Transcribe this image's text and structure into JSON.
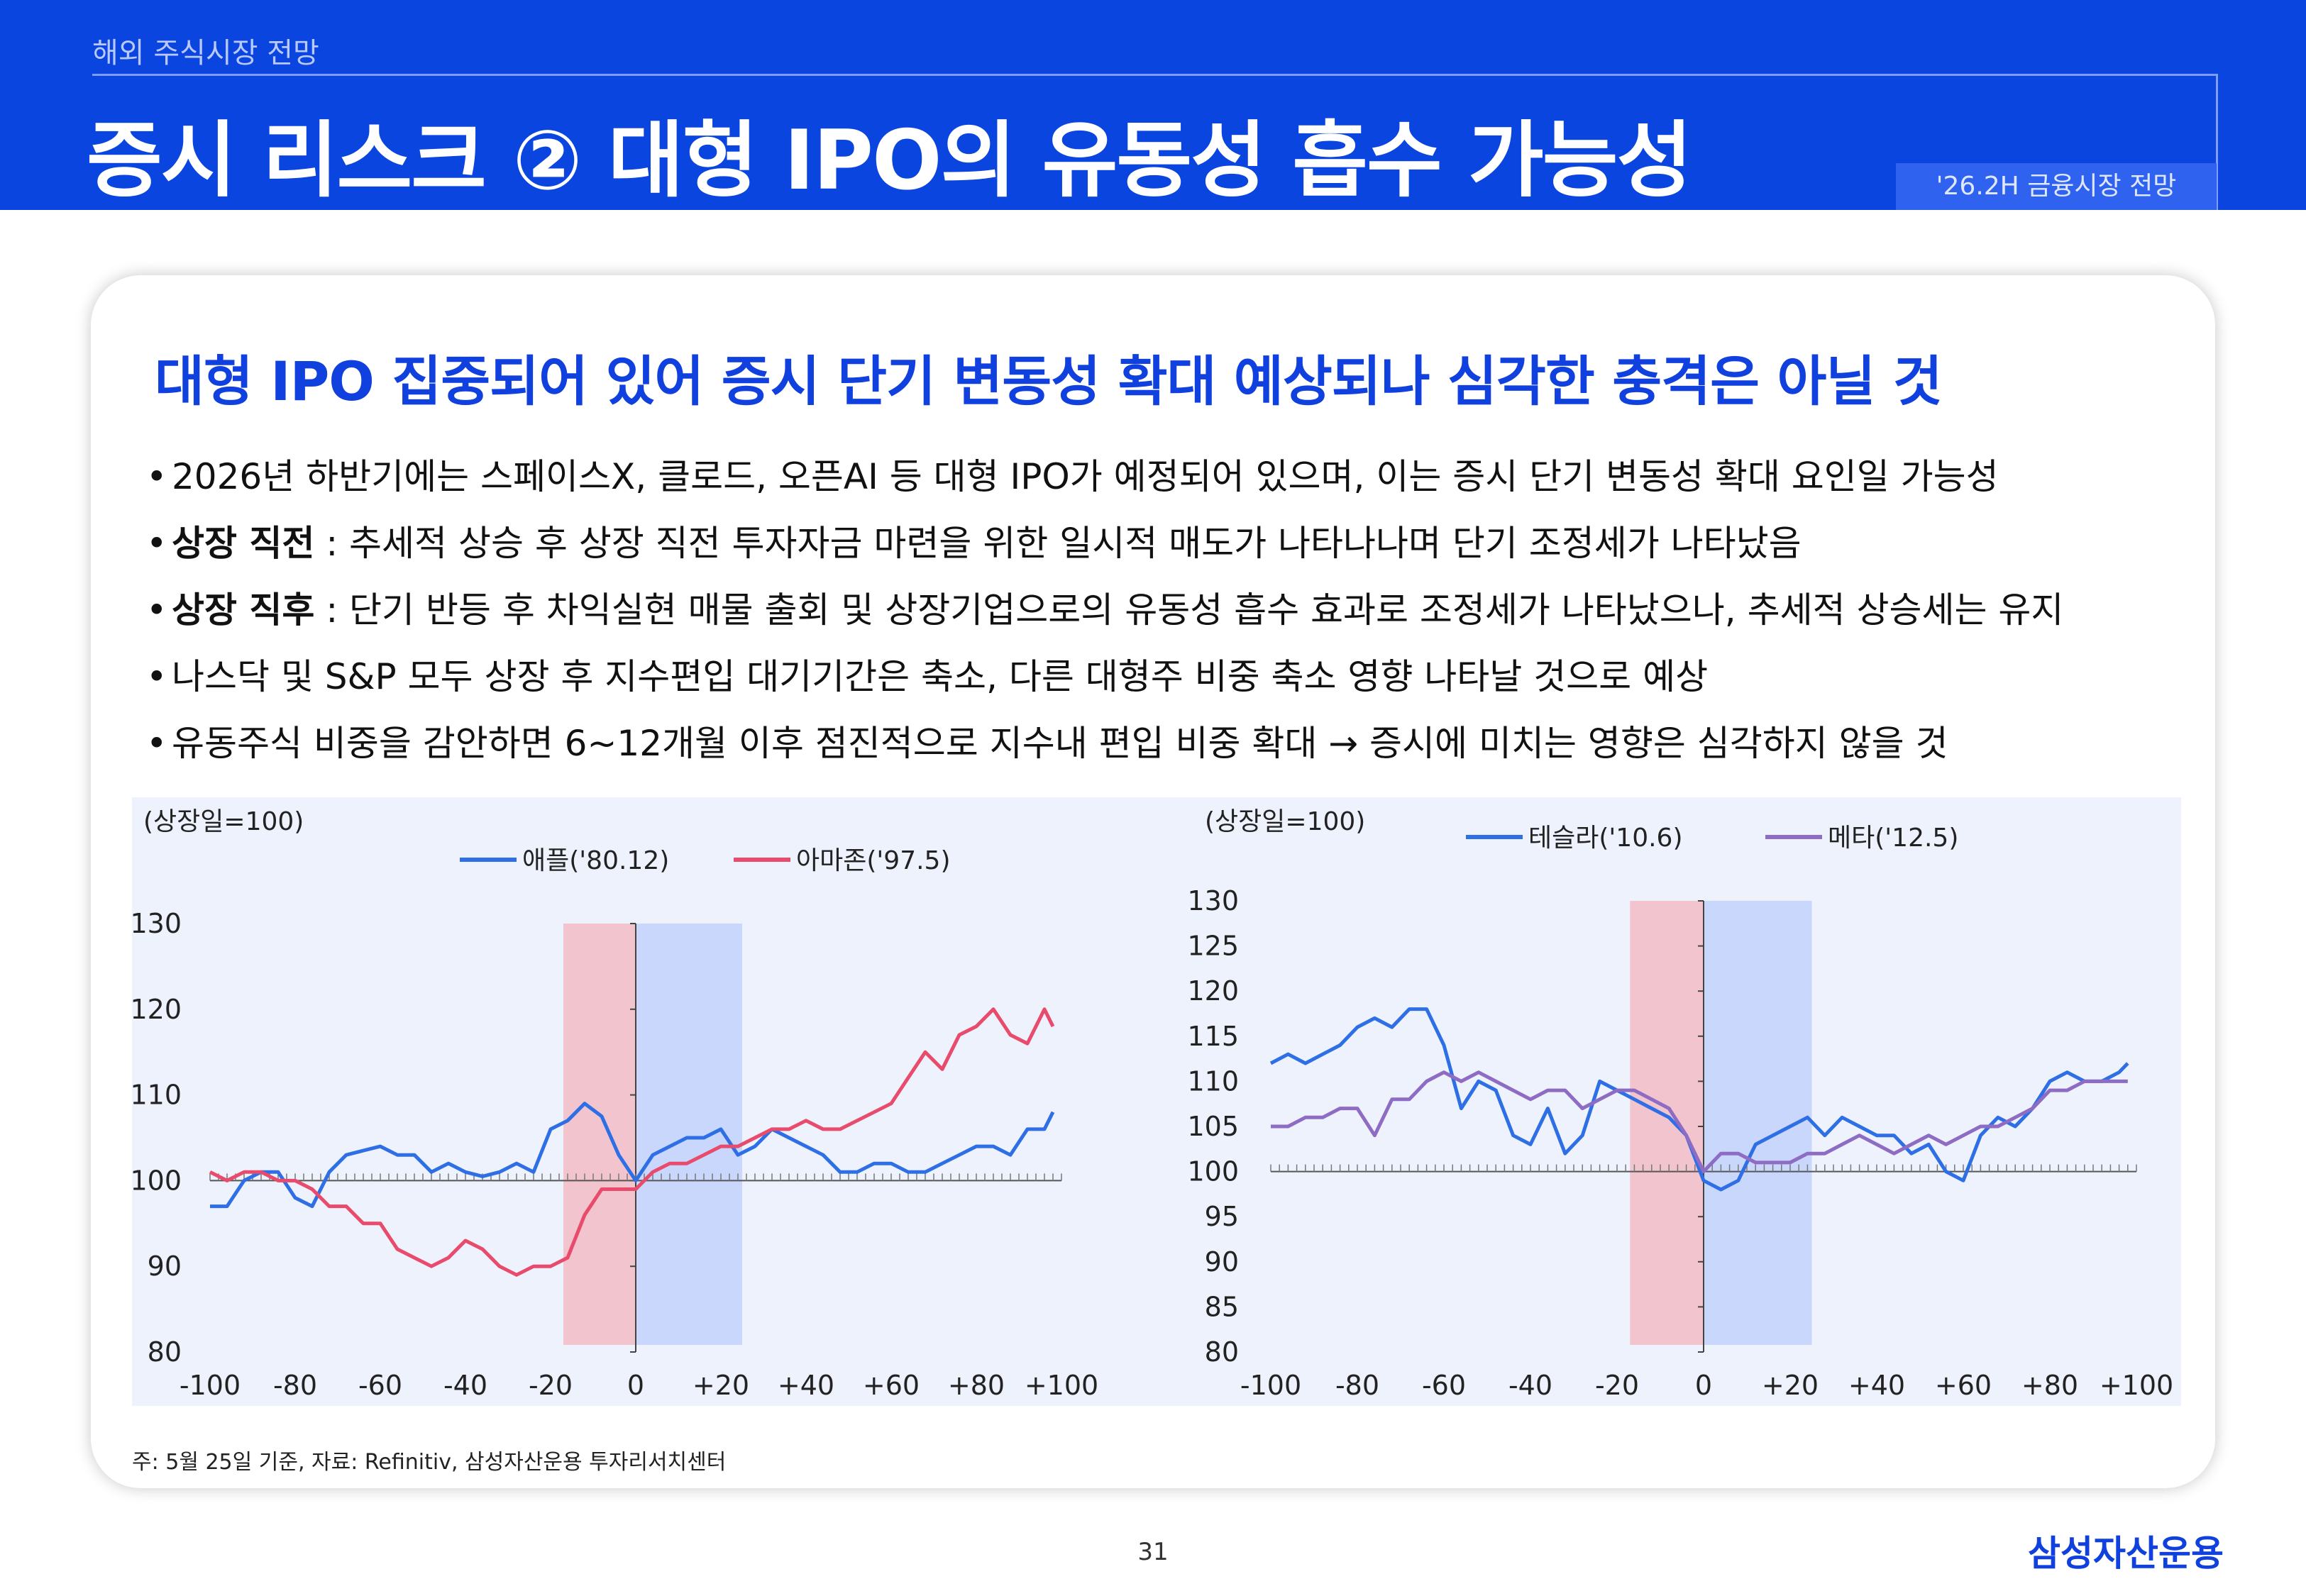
{
  "header": {
    "section": "해외 주식시장 전망",
    "title": "증시 리스크 ② 대형 IPO의 유동성 흡수 가능성",
    "tag": "'26.2H 금융시장 전망"
  },
  "headline": "대형 IPO 집중되어 있어 증시 단기 변동성 확대 예상되나 심각한 충격은 아닐 것",
  "bullets": [
    {
      "bold": "",
      "text": "2026년 하반기에는 스페이스X, 클로드, 오픈AI 등 대형 IPO가 예정되어 있으며, 이는 증시 단기 변동성 확대 요인일 가능성"
    },
    {
      "bold": "상장 직전",
      "text": " : 추세적 상승 후 상장 직전 투자자금 마련을 위한 일시적 매도가 나타나나며 단기 조정세가 나타났음"
    },
    {
      "bold": "상장 직후",
      "text": " : 단기 반등 후 차익실현 매물 출회 및 상장기업으로의 유동성 흡수 효과로 조정세가 나타났으나, 추세적 상승세는 유지"
    },
    {
      "bold": "",
      "text": "나스닥 및 S&P 모두 상장 후 지수편입 대기기간은 축소, 다른 대형주 비중 축소 영향 나타날 것으로 예상"
    },
    {
      "bold": "",
      "text": "유동주식 비중을 감안하면 6~12개월 이후 점진적으로 지수내 편입 비중 확대 → 증시에 미치는 영향은 심각하지 않을 것"
    }
  ],
  "chart_data": [
    {
      "type": "line",
      "ylabel": "(상장일=100)",
      "xlim": [
        -100,
        100
      ],
      "ylim": [
        80,
        130
      ],
      "yticks": [
        80,
        90,
        100,
        110,
        120,
        130
      ],
      "xticks": [
        -100,
        -80,
        -60,
        -40,
        -20,
        0,
        20,
        40,
        60,
        80,
        100
      ],
      "xtick_labels": [
        "-100",
        "-80",
        "-60",
        "-40",
        "-20",
        "0",
        "+20",
        "+40",
        "+60",
        "+80",
        "+100"
      ],
      "ytick_labels": [
        "80",
        "90",
        "100",
        "110",
        "120",
        "130"
      ],
      "shaded_regions": [
        {
          "from": -17,
          "to": 0,
          "color": "#f2c4ce"
        },
        {
          "from": 0,
          "to": 25,
          "color": "#c8d7fb"
        }
      ],
      "series": [
        {
          "name": "애플('80.12)",
          "color": "#2f6fe6",
          "x": [
            -100,
            -96,
            -92,
            -88,
            -84,
            -80,
            -76,
            -72,
            -68,
            -64,
            -60,
            -56,
            -52,
            -48,
            -44,
            -40,
            -36,
            -32,
            -28,
            -24,
            -20,
            -16,
            -12,
            -8,
            -4,
            0,
            4,
            8,
            12,
            16,
            20,
            24,
            28,
            32,
            36,
            40,
            44,
            48,
            52,
            56,
            60,
            64,
            68,
            72,
            76,
            80,
            84,
            88,
            92,
            96,
            98
          ],
          "y": [
            97,
            97,
            100,
            101,
            101,
            98,
            97,
            101,
            103,
            103.5,
            104,
            103,
            103,
            101,
            102,
            101,
            100.5,
            101,
            102,
            101,
            106,
            107,
            109,
            107.5,
            103,
            100,
            103,
            104,
            105,
            105,
            106,
            103,
            104,
            106,
            105,
            104,
            103,
            101,
            101,
            102,
            102,
            101,
            101,
            102,
            103,
            104,
            104,
            103,
            106,
            106,
            108
          ]
        },
        {
          "name": "아마존('97.5)",
          "color": "#e84b6b",
          "x": [
            -100,
            -96,
            -92,
            -88,
            -84,
            -80,
            -76,
            -72,
            -68,
            -64,
            -60,
            -56,
            -52,
            -48,
            -44,
            -40,
            -36,
            -32,
            -28,
            -24,
            -20,
            -16,
            -12,
            -8,
            -4,
            0,
            4,
            8,
            12,
            16,
            20,
            24,
            28,
            32,
            36,
            40,
            44,
            48,
            52,
            56,
            60,
            64,
            68,
            72,
            76,
            80,
            84,
            88,
            92,
            96,
            98
          ],
          "y": [
            101,
            100,
            101,
            101,
            100,
            100,
            99,
            97,
            97,
            95,
            95,
            92,
            91,
            90,
            91,
            93,
            92,
            90,
            89,
            90,
            90,
            91,
            96,
            99,
            99,
            99,
            101,
            102,
            102,
            103,
            104,
            104,
            105,
            106,
            106,
            107,
            106,
            106,
            107,
            108,
            109,
            112,
            115,
            113,
            117,
            118,
            120,
            117,
            116,
            120,
            118
          ]
        }
      ]
    },
    {
      "type": "line",
      "ylabel": "(상장일=100)",
      "xlim": [
        -100,
        100
      ],
      "ylim": [
        80,
        130
      ],
      "yticks": [
        80,
        85,
        90,
        95,
        100,
        105,
        110,
        115,
        120,
        125,
        130
      ],
      "xticks": [
        -100,
        -80,
        -60,
        -40,
        -20,
        0,
        20,
        40,
        60,
        80,
        100
      ],
      "xtick_labels": [
        "-100",
        "-80",
        "-60",
        "-40",
        "-20",
        "0",
        "+20",
        "+40",
        "+60",
        "+80",
        "+100"
      ],
      "ytick_labels": [
        "80",
        "85",
        "90",
        "95",
        "100",
        "105",
        "110",
        "115",
        "120",
        "125",
        "130"
      ],
      "shaded_regions": [
        {
          "from": -17,
          "to": 0,
          "color": "#f2c4ce"
        },
        {
          "from": 0,
          "to": 25,
          "color": "#c8d7fb"
        }
      ],
      "series": [
        {
          "name": "테슬라('10.6)",
          "color": "#2f6fe6",
          "x": [
            -100,
            -96,
            -92,
            -88,
            -84,
            -80,
            -76,
            -72,
            -68,
            -64,
            -60,
            -56,
            -52,
            -48,
            -44,
            -40,
            -36,
            -32,
            -28,
            -24,
            -20,
            -16,
            -12,
            -8,
            -4,
            0,
            4,
            8,
            12,
            16,
            20,
            24,
            28,
            32,
            36,
            40,
            44,
            48,
            52,
            56,
            60,
            64,
            68,
            72,
            76,
            80,
            84,
            88,
            92,
            96,
            98
          ],
          "y": [
            112,
            113,
            112,
            113,
            114,
            116,
            117,
            116,
            118,
            118,
            114,
            107,
            110,
            109,
            104,
            103,
            107,
            102,
            104,
            110,
            109,
            108,
            107,
            106,
            104,
            99,
            98,
            99,
            103,
            104,
            105,
            106,
            104,
            106,
            105,
            104,
            104,
            102,
            103,
            100,
            99,
            104,
            106,
            105,
            107,
            110,
            111,
            110,
            110,
            111,
            112
          ]
        },
        {
          "name": "메타('12.5)",
          "color": "#8e6cc4",
          "x": [
            -100,
            -96,
            -92,
            -88,
            -84,
            -80,
            -76,
            -72,
            -68,
            -64,
            -60,
            -56,
            -52,
            -48,
            -44,
            -40,
            -36,
            -32,
            -28,
            -24,
            -20,
            -16,
            -12,
            -8,
            -4,
            0,
            4,
            8,
            12,
            16,
            20,
            24,
            28,
            32,
            36,
            40,
            44,
            48,
            52,
            56,
            60,
            64,
            68,
            72,
            76,
            80,
            84,
            88,
            92,
            96,
            98
          ],
          "y": [
            105,
            105,
            106,
            106,
            107,
            107,
            104,
            108,
            108,
            110,
            111,
            110,
            111,
            110,
            109,
            108,
            109,
            109,
            107,
            108,
            109,
            109,
            108,
            107,
            104,
            100,
            102,
            102,
            101,
            101,
            101,
            102,
            102,
            103,
            104,
            103,
            102,
            103,
            104,
            103,
            104,
            105,
            105,
            106,
            107,
            109,
            109,
            110,
            110,
            110,
            110
          ]
        }
      ]
    }
  ],
  "source": "주: 5월 25일 기준, 자료: Refinitiv, 삼성자산운용 투자리서치센터",
  "page_number": "31",
  "logo": "삼성자산운용"
}
